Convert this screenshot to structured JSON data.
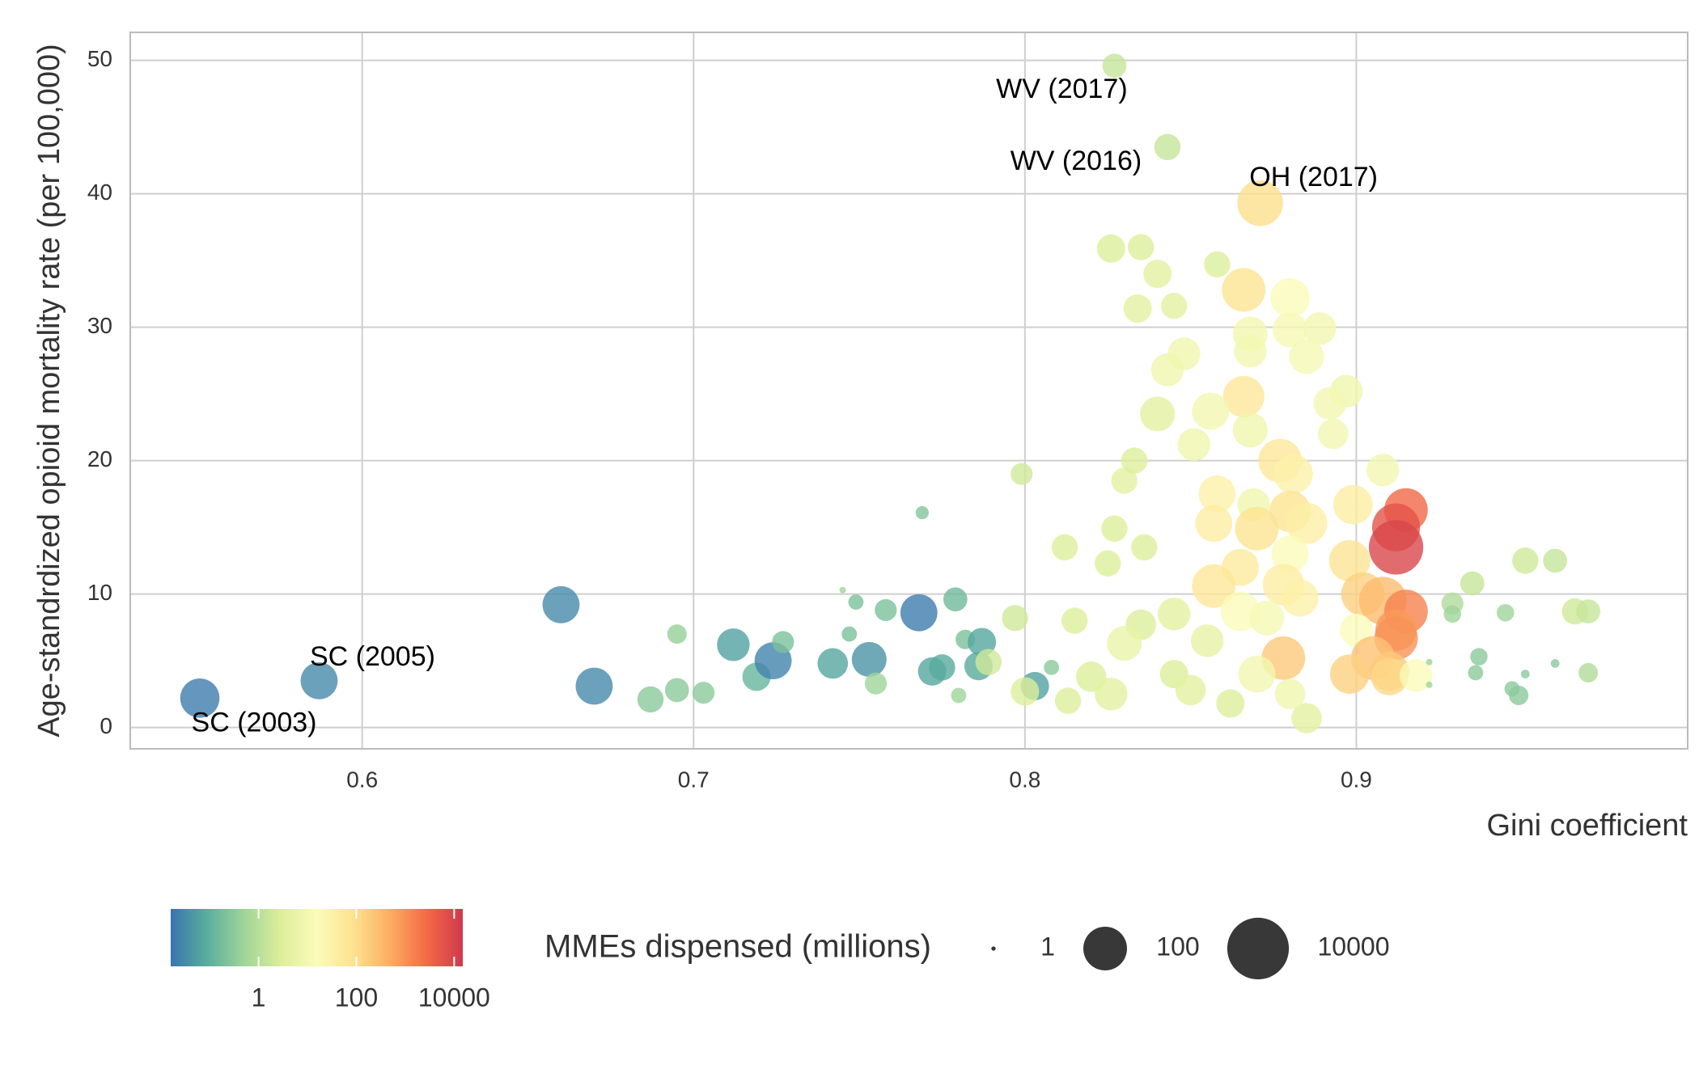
{
  "chart_data": {
    "type": "bubble",
    "xlabel": "Gini coefficient",
    "ylabel": "Age-standrdized opioid mortality rate (per 100,000)",
    "xlim": [
      0.53,
      1.0
    ],
    "ylim": [
      -1.6,
      52.1
    ],
    "xticks": [
      0.6,
      0.7,
      0.8,
      0.9
    ],
    "yticks": [
      0,
      10,
      20,
      30,
      40,
      50
    ],
    "grid": true,
    "series": [
      {
        "x": [
          0.551,
          0.587,
          0.66,
          0.67,
          0.687,
          0.695,
          0.695,
          0.703,
          0.712,
          0.719,
          0.724,
          0.727,
          0.742,
          0.747,
          0.749,
          0.753,
          0.755,
          0.758,
          0.768,
          0.769,
          0.772,
          0.775,
          0.779,
          0.78,
          0.782,
          0.787,
          0.786,
          0.789,
          0.797,
          0.799,
          0.803,
          0.8,
          0.827,
          0.843,
          0.871,
          0.826,
          0.835,
          0.84,
          0.834,
          0.845,
          0.858,
          0.866,
          0.88,
          0.88,
          0.868,
          0.889,
          0.885,
          0.848,
          0.843,
          0.868,
          0.866,
          0.897,
          0.892,
          0.856,
          0.84,
          0.868,
          0.893,
          0.851,
          0.877,
          0.881,
          0.83,
          0.833,
          0.908,
          0.858,
          0.869,
          0.88,
          0.899,
          0.915,
          0.912,
          0.912,
          0.857,
          0.885,
          0.87,
          0.827,
          0.812,
          0.836,
          0.88,
          0.898,
          0.865,
          0.825,
          0.857,
          0.878,
          0.902,
          0.908,
          0.915,
          0.912,
          0.912,
          0.9,
          0.865,
          0.873,
          0.883,
          0.815,
          0.835,
          0.845,
          0.83,
          0.855,
          0.878,
          0.905,
          0.898,
          0.91,
          0.87,
          0.845,
          0.82,
          0.826,
          0.813,
          0.862,
          0.885,
          0.91,
          0.918,
          0.88,
          0.85,
          0.929,
          0.929,
          0.935,
          0.945,
          0.937,
          0.936,
          0.947,
          0.949,
          0.951,
          0.96,
          0.966,
          0.97,
          0.97,
          0.96,
          0.951,
          0.922,
          0.922,
          0.745,
          0.808
        ],
        "y": [
          2.2,
          3.5,
          9.2,
          3.1,
          2.1,
          2.8,
          7.0,
          2.6,
          6.2,
          3.8,
          5.0,
          6.4,
          4.8,
          7.0,
          9.4,
          5.1,
          3.3,
          8.8,
          8.6,
          16.1,
          4.2,
          4.5,
          9.6,
          2.4,
          6.6,
          6.4,
          4.6,
          4.9,
          8.2,
          19.0,
          3.1,
          2.7,
          49.6,
          43.5,
          39.3,
          35.9,
          36.0,
          34.0,
          31.4,
          31.6,
          34.7,
          32.8,
          32.2,
          29.8,
          29.5,
          29.9,
          27.8,
          28.0,
          26.8,
          28.2,
          24.8,
          25.2,
          24.3,
          23.7,
          23.5,
          22.3,
          22.0,
          21.2,
          20.0,
          19.0,
          18.5,
          20.0,
          19.3,
          17.5,
          16.7,
          16.2,
          16.7,
          16.3,
          15.0,
          13.5,
          15.3,
          15.3,
          14.9,
          14.9,
          13.5,
          13.5,
          13.0,
          12.5,
          12.0,
          12.3,
          10.6,
          10.7,
          10.0,
          9.5,
          8.7,
          7.3,
          6.7,
          7.3,
          8.7,
          8.2,
          9.7,
          8.0,
          7.7,
          8.5,
          6.3,
          6.5,
          5.2,
          5.2,
          4.0,
          4.2,
          4.0,
          4.0,
          3.8,
          2.5,
          2.0,
          1.8,
          0.7,
          3.8,
          3.9,
          2.5,
          2.8,
          9.3,
          8.5,
          10.8,
          8.6,
          5.3,
          4.1,
          2.9,
          2.4,
          12.5,
          12.5,
          8.7,
          8.7,
          4.1,
          4.8,
          4.0,
          4.9,
          3.2,
          10.3,
          4.5
        ],
        "sizes": [
          41,
          27,
          27,
          27,
          5.1,
          3.9,
          2.4,
          3.1,
          13,
          6.8,
          27,
          3.1,
          9.2,
          1.68,
          1.68,
          18.5,
          3.1,
          3.1,
          27,
          1.45,
          6.8,
          5.1,
          3.9,
          1.68,
          2.4,
          6.8,
          6.8,
          5.1,
          5.1,
          3.1,
          6.8,
          6.8,
          3.9,
          5.1,
          157,
          6.8,
          5.1,
          6.8,
          6.8,
          5.1,
          5.1,
          97,
          41,
          18.5,
          18.5,
          13,
          18.5,
          13,
          13,
          13,
          62,
          13,
          13,
          27,
          18.5,
          18.5,
          9.2,
          13,
          97,
          41,
          5.1,
          5.1,
          13,
          27,
          13,
          62,
          41,
          97,
          257,
          1300,
          27,
          62,
          97,
          5.1,
          5.1,
          5.1,
          27,
          62,
          27,
          5.1,
          97,
          62,
          97,
          257,
          97,
          62,
          97,
          13,
          41,
          18.5,
          27,
          5.1,
          9.2,
          13,
          18.5,
          13,
          97,
          97,
          41,
          41,
          27,
          6.8,
          9.2,
          13,
          5.1,
          6.8,
          9.2,
          27,
          13,
          9.2,
          9.2,
          3.1,
          2.0,
          3.9,
          2.0,
          2.0,
          1.68,
          1.68,
          2.4,
          5.1,
          3.9,
          5.1,
          3.9,
          2.4,
          1.15,
          1.15,
          1.06,
          1.06,
          1.06,
          1.68
        ],
        "color_values": [
          0.02,
          0.03,
          0.03,
          0.03,
          0.3,
          0.3,
          0.4,
          0.3,
          0.06,
          0.12,
          0.025,
          0.2,
          0.07,
          0.2,
          0.2,
          0.04,
          0.5,
          0.2,
          0.02,
          0.25,
          0.07,
          0.08,
          0.15,
          0.5,
          0.2,
          0.07,
          0.08,
          2,
          2,
          2,
          0.06,
          3,
          1.5,
          1.5,
          100,
          3,
          3,
          4,
          4,
          4,
          3,
          80,
          15,
          12,
          10,
          10,
          12,
          8,
          8,
          10,
          60,
          8,
          10,
          10,
          4,
          8,
          10,
          8,
          60,
          30,
          4,
          3,
          10,
          30,
          8,
          80,
          40,
          3000,
          6000,
          9000,
          40,
          35,
          80,
          3,
          3,
          3,
          15,
          70,
          50,
          3,
          60,
          40,
          150,
          300,
          1500,
          800,
          1000,
          15,
          15,
          12,
          30,
          3,
          3,
          4,
          6,
          5,
          200,
          250,
          150,
          200,
          10,
          3,
          3,
          4,
          3,
          3,
          4,
          120,
          15,
          8,
          4,
          0.8,
          0.5,
          1.5,
          0.5,
          0.3,
          0.3,
          0.3,
          0.3,
          2,
          1.5,
          2,
          1.5,
          0.8,
          0.3,
          0.3,
          0.5,
          0.5,
          0.5,
          0.3
        ],
        "point_labels": [
          "SC (2003)",
          "SC (2005)",
          null,
          null,
          null,
          null,
          null,
          null,
          null,
          null,
          null,
          null,
          null,
          null,
          null,
          null,
          null,
          null,
          null,
          null,
          null,
          null,
          null,
          null,
          null,
          null,
          null,
          null,
          null,
          null,
          null,
          null,
          "WV (2017)",
          "WV (2016)",
          "OH (2017)",
          null,
          null,
          null,
          null,
          null,
          null,
          null,
          null,
          null,
          null,
          null,
          null,
          null,
          null,
          null,
          null,
          null,
          null,
          null,
          null,
          null,
          null,
          null,
          null,
          null,
          null,
          null,
          null,
          null,
          null,
          null,
          null,
          null,
          null,
          null,
          null,
          null,
          null,
          null,
          null,
          null,
          null,
          null,
          null,
          null,
          null,
          null,
          null,
          null,
          null,
          null,
          null,
          null,
          null,
          null,
          null,
          null,
          null,
          null,
          null,
          null,
          null,
          null,
          null,
          null,
          null,
          null,
          null,
          null,
          null,
          null,
          null,
          null,
          null,
          null,
          null,
          null,
          null,
          null,
          null,
          null,
          null,
          null,
          null,
          null,
          null,
          null,
          null,
          null,
          null,
          null,
          null,
          null,
          null,
          null
        ]
      }
    ],
    "colorbar": {
      "lim": [
        0.016,
        15000
      ],
      "ticks": [
        1,
        100,
        10000
      ],
      "log": true,
      "colors": [
        "#3a74b0",
        "#5aae9c",
        "#9fd49a",
        "#dcee9a",
        "#fbfbba",
        "#fde290",
        "#fcae62",
        "#f36b45",
        "#d0384d"
      ]
    },
    "size_legend": {
      "title": "MMEs dispensed (millions)",
      "ticks": [
        1,
        100,
        10000
      ],
      "color": "#222222"
    }
  }
}
